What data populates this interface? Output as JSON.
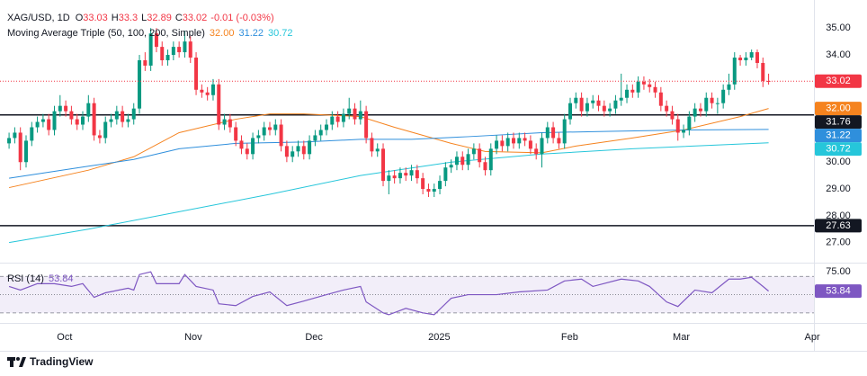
{
  "brand": "TradingView",
  "chart_data": [
    {
      "type": "candlestick",
      "title": "XAG/USD, 1D",
      "ohlc_labels": [
        "O",
        "H",
        "L",
        "C"
      ],
      "change_label": "-0.01 (-0.03%)",
      "indicator": "Moving Average Triple (50, 100, 200, Simple)",
      "up_color": "#089981",
      "down_color": "#f23645",
      "open": [
        30.7,
        30.9,
        31.1,
        30.0,
        30.8,
        31.3,
        31.5,
        31.6,
        31.2,
        31.9,
        32.1,
        31.9,
        31.6,
        31.4,
        31.7,
        32.2,
        31.0,
        30.9,
        31.5,
        31.6,
        31.9,
        31.5,
        31.6,
        32.0,
        33.8,
        33.6,
        34.8,
        34.3,
        33.8,
        34.0,
        34.3,
        34.1,
        34.5,
        33.9,
        32.7,
        32.6,
        32.5,
        32.9,
        31.4,
        31.6,
        31.3,
        30.8,
        30.5,
        30.3,
        30.9,
        31.0,
        31.3,
        31.2,
        31.4,
        30.6,
        30.2,
        30.4,
        30.6,
        30.3,
        30.8,
        31.0,
        31.2,
        31.4,
        31.7,
        31.5,
        31.8,
        32.0,
        31.6,
        31.9,
        30.9,
        30.4,
        30.5,
        29.3,
        29.5,
        29.4,
        29.6,
        29.5,
        29.7,
        29.4,
        29.0,
        28.9,
        29.0,
        29.3,
        29.8,
        29.9,
        30.2,
        29.9,
        30.3,
        30.5,
        30.0,
        29.7,
        30.5,
        30.8,
        30.6,
        30.9,
        30.7,
        30.9,
        30.8,
        30.5,
        30.3,
        30.9,
        31.3,
        30.9,
        30.7,
        31.6,
        32.2,
        32.4,
        31.9,
        32.2,
        32.3,
        32.1,
        31.9,
        32.0,
        32.3,
        32.4,
        32.7,
        32.6,
        33.0,
        32.9,
        32.8,
        32.6,
        32.1,
        31.9,
        31.6,
        31.1,
        31.2,
        31.7,
        32.0,
        31.9,
        32.4,
        32.2,
        32.2,
        32.7,
        32.9,
        33.9,
        33.8,
        33.9,
        34.1,
        33.7,
        33.03
      ],
      "high": [
        31.1,
        31.3,
        31.3,
        31.0,
        31.5,
        31.7,
        31.8,
        31.8,
        32.1,
        32.5,
        32.3,
        32.1,
        31.8,
        31.9,
        32.5,
        32.4,
        31.2,
        31.7,
        31.8,
        32.1,
        32.1,
        31.8,
        32.2,
        34.0,
        34.1,
        35.0,
        35.0,
        34.5,
        34.2,
        34.5,
        34.5,
        34.9,
        34.7,
        34.1,
        32.9,
        32.8,
        33.1,
        33.1,
        31.8,
        31.8,
        31.5,
        31.0,
        30.7,
        31.1,
        31.2,
        31.5,
        31.5,
        31.6,
        31.6,
        30.8,
        30.6,
        30.8,
        30.8,
        31.0,
        31.2,
        31.4,
        31.6,
        31.9,
        31.9,
        32.0,
        32.4,
        32.2,
        32.3,
        32.1,
        31.1,
        30.7,
        30.7,
        29.7,
        29.7,
        29.8,
        29.8,
        29.9,
        29.9,
        29.6,
        29.2,
        29.2,
        29.5,
        30.0,
        30.1,
        30.4,
        30.4,
        30.5,
        30.7,
        30.7,
        30.2,
        30.7,
        31.0,
        31.0,
        31.1,
        31.1,
        31.1,
        31.1,
        31.0,
        30.7,
        31.1,
        31.5,
        31.5,
        31.1,
        31.8,
        32.4,
        32.6,
        32.6,
        32.4,
        32.5,
        32.5,
        32.3,
        32.2,
        32.5,
        33.3,
        32.9,
        32.9,
        33.2,
        33.2,
        33.1,
        33.0,
        32.8,
        32.3,
        32.1,
        31.8,
        31.4,
        31.9,
        32.2,
        32.2,
        32.6,
        32.6,
        32.4,
        32.9,
        33.3,
        34.1,
        34.0,
        34.1,
        34.2,
        34.2,
        33.9,
        33.3
      ],
      "low": [
        30.5,
        30.7,
        29.7,
        29.8,
        30.6,
        31.1,
        31.3,
        31.0,
        31.0,
        31.7,
        31.7,
        31.4,
        31.2,
        31.2,
        31.5,
        30.8,
        30.7,
        30.7,
        31.3,
        31.4,
        31.3,
        31.3,
        31.4,
        31.8,
        33.4,
        33.4,
        34.1,
        33.6,
        33.6,
        33.8,
        33.9,
        33.9,
        33.7,
        32.5,
        32.4,
        32.3,
        32.3,
        31.2,
        31.2,
        31.1,
        30.6,
        30.3,
        30.1,
        30.1,
        30.7,
        30.8,
        31.0,
        31.0,
        30.4,
        30.0,
        30.0,
        30.2,
        30.1,
        30.1,
        30.6,
        30.8,
        31.0,
        31.2,
        31.3,
        31.3,
        31.6,
        31.4,
        31.4,
        30.7,
        30.2,
        30.2,
        29.1,
        28.8,
        29.2,
        29.2,
        29.3,
        29.3,
        29.2,
        28.8,
        28.7,
        28.7,
        28.8,
        29.1,
        29.6,
        29.7,
        29.7,
        29.7,
        30.1,
        29.8,
        29.5,
        29.5,
        30.3,
        30.4,
        30.4,
        30.5,
        30.5,
        30.6,
        30.3,
        30.1,
        29.8,
        30.7,
        30.7,
        30.5,
        30.5,
        31.4,
        32.0,
        31.7,
        31.7,
        32.0,
        31.9,
        31.7,
        31.7,
        31.8,
        32.1,
        32.2,
        32.4,
        32.4,
        32.7,
        32.6,
        32.4,
        31.9,
        31.7,
        31.4,
        30.8,
        30.9,
        31.0,
        31.5,
        31.7,
        31.7,
        32.0,
        31.8,
        32.0,
        32.5,
        32.7,
        33.6,
        33.6,
        33.8,
        33.5,
        32.8,
        32.89
      ],
      "close": [
        30.9,
        31.1,
        30.0,
        30.8,
        31.3,
        31.5,
        31.6,
        31.2,
        31.9,
        32.1,
        31.9,
        31.6,
        31.4,
        31.7,
        32.2,
        31.0,
        30.9,
        31.5,
        31.6,
        31.9,
        31.5,
        31.6,
        32.0,
        33.8,
        33.6,
        34.8,
        34.3,
        33.8,
        34.0,
        34.3,
        34.1,
        34.5,
        33.9,
        32.7,
        32.6,
        32.5,
        32.9,
        31.4,
        31.6,
        31.3,
        30.8,
        30.5,
        30.3,
        30.9,
        31.0,
        31.3,
        31.2,
        31.4,
        30.6,
        30.2,
        30.4,
        30.6,
        30.3,
        30.8,
        31.0,
        31.2,
        31.4,
        31.7,
        31.5,
        31.8,
        32.0,
        31.6,
        31.9,
        30.9,
        30.4,
        30.5,
        29.3,
        29.5,
        29.4,
        29.6,
        29.5,
        29.7,
        29.4,
        29.0,
        28.9,
        29.0,
        29.3,
        29.8,
        29.9,
        30.2,
        29.9,
        30.3,
        30.5,
        30.0,
        29.7,
        30.5,
        30.8,
        30.6,
        30.9,
        30.7,
        30.9,
        30.8,
        30.5,
        30.3,
        30.9,
        31.3,
        30.9,
        30.7,
        31.6,
        32.2,
        32.4,
        31.9,
        32.2,
        32.3,
        32.1,
        31.9,
        32.0,
        32.3,
        32.4,
        32.7,
        32.6,
        33.0,
        32.9,
        32.8,
        32.6,
        32.1,
        31.9,
        31.6,
        31.1,
        31.2,
        31.7,
        32.0,
        31.9,
        32.4,
        32.2,
        32.2,
        32.7,
        32.9,
        33.9,
        33.8,
        33.9,
        34.1,
        33.7,
        33.03,
        33.02
      ],
      "series": [
        {
          "color": "#f5831f",
          "value_label": "32.00",
          "x": [
            0,
            14,
            22,
            30,
            40,
            46,
            52,
            62,
            68,
            78,
            84,
            94,
            100,
            110,
            119,
            129,
            134
          ],
          "values": [
            29.05,
            29.7,
            30.2,
            31.1,
            31.6,
            31.8,
            31.8,
            31.7,
            31.3,
            30.7,
            30.4,
            30.35,
            30.6,
            30.9,
            31.2,
            31.7,
            32.0
          ]
        },
        {
          "color": "#2f8fdc",
          "value_label": "31.22",
          "x": [
            0,
            14,
            22,
            30,
            40,
            52,
            62,
            71,
            81,
            94,
            106,
            119,
            134
          ],
          "values": [
            29.4,
            29.85,
            30.1,
            30.5,
            30.7,
            30.75,
            30.85,
            30.85,
            30.95,
            31.1,
            31.15,
            31.2,
            31.22
          ]
        },
        {
          "color": "#26c6da",
          "value_label": "30.72",
          "x": [
            0,
            14,
            30,
            46,
            62,
            78,
            94,
            110,
            134
          ],
          "values": [
            27.0,
            27.5,
            28.15,
            28.8,
            29.5,
            30.0,
            30.3,
            30.5,
            30.72
          ]
        }
      ],
      "levels": [
        {
          "value": 31.76,
          "label": "31.76"
        },
        {
          "value": 27.63,
          "label": "27.63"
        }
      ],
      "xlim": [
        -1.6,
        142
      ],
      "ylim": [
        26.25,
        35.78
      ],
      "yticks": [
        {
          "value": 35,
          "label": "35.00"
        },
        {
          "value": 34,
          "label": "34.00"
        },
        {
          "value": 30,
          "label": "30.00"
        },
        {
          "value": 29,
          "label": "29.00"
        },
        {
          "value": 28,
          "label": "28.00"
        },
        {
          "value": 27,
          "label": "27.00"
        }
      ],
      "xticks": [
        {
          "value": 9.8,
          "label": "Oct"
        },
        {
          "value": 32.5,
          "label": "Nov"
        },
        {
          "value": 53.8,
          "label": "Dec"
        },
        {
          "value": 75.9,
          "label": "2025"
        },
        {
          "value": 98.9,
          "label": "Feb"
        },
        {
          "value": 118.6,
          "label": "Mar"
        },
        {
          "value": 141.7,
          "label": "Apr"
        }
      ]
    },
    {
      "type": "line",
      "title": "RSI (14)",
      "color": "#7e57c2",
      "x": [
        0,
        2,
        5,
        8,
        11,
        13,
        15,
        17,
        21,
        22,
        23,
        25,
        26,
        30,
        31,
        33,
        36,
        37,
        40,
        43,
        46,
        49,
        52,
        56,
        59,
        62,
        63,
        66,
        67,
        70,
        73,
        75,
        78,
        81,
        86,
        90,
        95,
        98,
        101,
        103,
        108,
        111,
        113,
        116,
        118,
        121,
        124,
        127,
        129,
        131,
        133,
        134
      ],
      "values": [
        59,
        55,
        62,
        62,
        59,
        62,
        47,
        52,
        57,
        55,
        72,
        75,
        62,
        62,
        72,
        59,
        55,
        40,
        38,
        48,
        53,
        38,
        43,
        50,
        55,
        59,
        42,
        30,
        28,
        35,
        30,
        28,
        46,
        50,
        50,
        53,
        55,
        65,
        67,
        59,
        67,
        65,
        59,
        42,
        37,
        55,
        52,
        67,
        67,
        69,
        59,
        53.84
      ],
      "band": [
        30,
        70
      ],
      "midline": 50,
      "ylim": [
        20,
        85
      ],
      "yticks": [
        {
          "value": 75,
          "label": "75.00"
        }
      ]
    }
  ]
}
